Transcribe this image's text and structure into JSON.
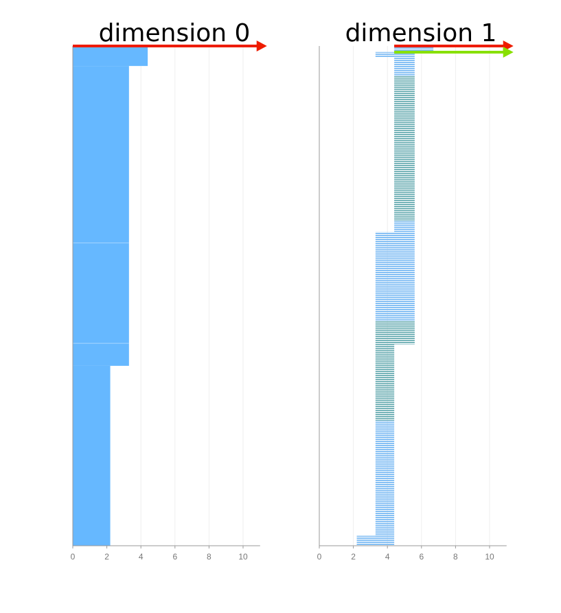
{
  "chart_data": [
    {
      "type": "bar",
      "orientation": "horizontal",
      "title": "dimension 0",
      "xlim": [
        0,
        11
      ],
      "xticks": [
        "0",
        "2",
        "4",
        "6",
        "8",
        "10"
      ],
      "grid": true,
      "bar_color": "#66b8ff",
      "separator_rows": [
        0.394,
        0.595
      ],
      "value_segments": [
        {
          "from": 0.0,
          "to": 0.04,
          "value": 4.4
        },
        {
          "from": 0.04,
          "to": 0.64,
          "value": 3.3
        },
        {
          "from": 0.64,
          "to": 1.0,
          "value": 2.2
        }
      ],
      "arrows": [
        {
          "color": "#ee1c00",
          "to": 11.4
        }
      ]
    },
    {
      "type": "bar",
      "orientation": "horizontal",
      "title": "dimension 1",
      "xlim": [
        0,
        11
      ],
      "xticks": [
        "0",
        "2",
        "4",
        "6",
        "8",
        "10"
      ],
      "grid": true,
      "bar_color": "#86c0f4",
      "overlay_color": "#6aaa88",
      "striped": true,
      "segments": [
        {
          "from": 0.0,
          "to": 0.012,
          "start": 4.4,
          "end": 6.7
        },
        {
          "from": 0.012,
          "to": 0.022,
          "start": 3.3,
          "end": 5.6
        },
        {
          "from": 0.022,
          "to": 0.372,
          "start": 4.4,
          "end": 5.6
        },
        {
          "from": 0.372,
          "to": 0.597,
          "start": 3.3,
          "end": 5.6
        },
        {
          "from": 0.597,
          "to": 0.98,
          "start": 3.3,
          "end": 4.4
        },
        {
          "from": 0.98,
          "to": 1.0,
          "start": 2.2,
          "end": 4.4
        }
      ],
      "overlay_segments": [
        {
          "from": 0.06,
          "to": 0.35,
          "start": 4.4,
          "end": 5.6
        },
        {
          "from": 0.55,
          "to": 0.597,
          "start": 3.3,
          "end": 5.6
        },
        {
          "from": 0.597,
          "to": 0.75,
          "start": 3.3,
          "end": 4.4
        }
      ],
      "arrows": [
        {
          "color": "#ee1c00",
          "from": 4.4,
          "to": 11.4
        },
        {
          "color": "#88e000",
          "from": 4.4,
          "to": 11.4
        }
      ]
    }
  ]
}
